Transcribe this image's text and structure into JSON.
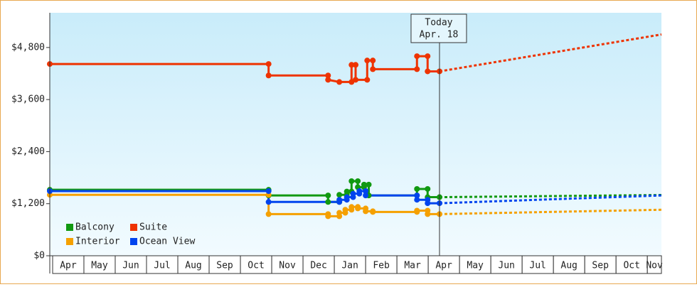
{
  "chart_data": {
    "type": "line",
    "ylim": [
      0,
      5600
    ],
    "yticks": [
      {
        "value": 0,
        "label": "$0"
      },
      {
        "value": 1200,
        "label": "$1,200"
      },
      {
        "value": 2400,
        "label": "$2,400"
      },
      {
        "value": 3600,
        "label": "$3,600"
      },
      {
        "value": 4800,
        "label": "$4,800"
      }
    ],
    "xlim": [
      -0.09,
      19.45
    ],
    "xticks": [
      {
        "value": 0.5,
        "label": "Apr"
      },
      {
        "value": 1.5,
        "label": "May"
      },
      {
        "value": 2.5,
        "label": "Jun"
      },
      {
        "value": 3.5,
        "label": "Jul"
      },
      {
        "value": 4.5,
        "label": "Aug"
      },
      {
        "value": 5.5,
        "label": "Sep"
      },
      {
        "value": 6.5,
        "label": "Oct"
      },
      {
        "value": 7.5,
        "label": "Nov"
      },
      {
        "value": 8.5,
        "label": "Dec"
      },
      {
        "value": 9.5,
        "label": "Jan"
      },
      {
        "value": 10.5,
        "label": "Feb"
      },
      {
        "value": 11.5,
        "label": "Mar"
      },
      {
        "value": 12.5,
        "label": "Apr"
      },
      {
        "value": 13.5,
        "label": "May"
      },
      {
        "value": 14.5,
        "label": "Jun"
      },
      {
        "value": 15.5,
        "label": "Jul"
      },
      {
        "value": 16.5,
        "label": "Aug"
      },
      {
        "value": 17.5,
        "label": "Sep"
      },
      {
        "value": 18.5,
        "label": "Oct"
      },
      {
        "value": 19.5,
        "label": "Nov"
      }
    ],
    "today": {
      "title": "Today",
      "date": "Apr. 18",
      "x": 12.36
    },
    "series": [
      {
        "name": "Balcony",
        "color": "#119911",
        "x": [
          -0.09,
          6.9,
          6.9,
          8.8,
          8.8,
          9.16,
          9.16,
          9.4,
          9.4,
          9.55,
          9.55,
          9.75,
          9.75,
          9.95,
          9.95,
          10.1,
          10.1,
          11.64,
          11.64,
          11.98,
          11.98,
          12.36
        ],
        "values": [
          1520,
          1520,
          1390,
          1390,
          1240,
          1240,
          1405,
          1405,
          1480,
          1480,
          1720,
          1720,
          1580,
          1580,
          1640,
          1640,
          1390,
          1390,
          1540,
          1540,
          1350,
          1350
        ],
        "forecast_x": [
          12.36,
          19.45
        ],
        "forecast_values": [
          1350,
          1400
        ]
      },
      {
        "name": "Suite",
        "color": "#ee3300",
        "x": [
          -0.09,
          6.9,
          6.9,
          8.8,
          8.8,
          9.16,
          9.55,
          9.55,
          9.68,
          9.68,
          10.05,
          10.05,
          10.23,
          10.23,
          11.64,
          11.64,
          11.98,
          11.98,
          12.36
        ],
        "values": [
          4420,
          4420,
          4155,
          4155,
          4055,
          4005,
          4005,
          4400,
          4400,
          4055,
          4055,
          4500,
          4500,
          4300,
          4300,
          4600,
          4600,
          4250,
          4250
        ],
        "forecast_x": [
          12.36,
          19.45
        ],
        "forecast_values": [
          4250,
          5100
        ]
      },
      {
        "name": "Interior",
        "color": "#f5a000",
        "x": [
          -0.09,
          6.9,
          6.9,
          8.8,
          8.8,
          9.16,
          9.16,
          9.35,
          9.35,
          9.55,
          9.55,
          9.75,
          9.75,
          10.0,
          10.0,
          10.23,
          10.23,
          11.64,
          11.64,
          11.98,
          11.98,
          12.36
        ],
        "values": [
          1405,
          1405,
          960,
          960,
          910,
          910,
          990,
          990,
          1060,
          1060,
          1125,
          1125,
          1090,
          1090,
          1025,
          1025,
          1010,
          1010,
          1040,
          1040,
          960,
          960
        ],
        "forecast_x": [
          12.36,
          19.45
        ],
        "forecast_values": [
          960,
          1060
        ]
      },
      {
        "name": "Ocean View",
        "color": "#0044ee",
        "x": [
          -0.09,
          6.9,
          6.9,
          9.16,
          9.16,
          9.4,
          9.4,
          9.6,
          9.6,
          9.8,
          9.8,
          10.0,
          10.0,
          11.64,
          11.64,
          11.98,
          11.98,
          12.36
        ],
        "values": [
          1490,
          1490,
          1240,
          1240,
          1290,
          1290,
          1350,
          1350,
          1430,
          1430,
          1490,
          1490,
          1390,
          1390,
          1290,
          1290,
          1210,
          1210
        ],
        "forecast_x": [
          12.36,
          19.45
        ],
        "forecast_values": [
          1210,
          1390
        ]
      }
    ]
  }
}
